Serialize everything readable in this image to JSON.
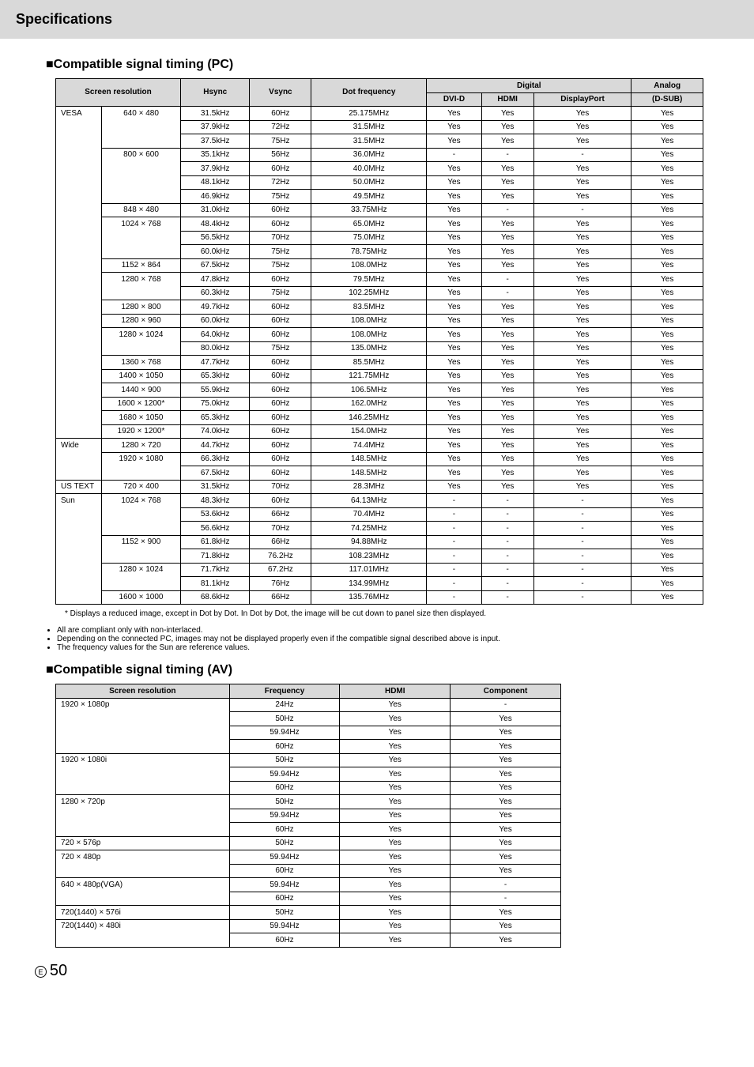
{
  "page_header": "Specifications",
  "section_pc_title": "■Compatible signal timing (PC)",
  "section_av_title": "■Compatible signal timing (AV)",
  "footnote_pc": "* Displays a reduced image, except in Dot by Dot. In Dot by Dot, the image will be cut down to panel size then displayed.",
  "notes": [
    "All are compliant only with non-interlaced.",
    "Depending on the connected PC, images may not be displayed properly even if the compatible signal described above is input.",
    "The frequency values for the Sun are reference values."
  ],
  "page_symbol": "E",
  "page_number": "50",
  "pc_header": {
    "screen_res": "Screen resolution",
    "hsync": "Hsync",
    "vsync": "Vsync",
    "dotfreq": "Dot frequency",
    "digital": "Digital",
    "dvid": "DVI-D",
    "hdmi": "HDMI",
    "dp": "DisplayPort",
    "analog": "Analog",
    "dsub": "(D-SUB)"
  },
  "pc_rows": [
    {
      "g": "VESA",
      "r": "640 × 480",
      "h": "31.5kHz",
      "v": "60Hz",
      "d": "25.175MHz",
      "dv": "Yes",
      "hd": "Yes",
      "dp": "Yes",
      "an": "Yes"
    },
    {
      "g": "",
      "r": "",
      "h": "37.9kHz",
      "v": "72Hz",
      "d": "31.5MHz",
      "dv": "Yes",
      "hd": "Yes",
      "dp": "Yes",
      "an": "Yes"
    },
    {
      "g": "",
      "r": "",
      "h": "37.5kHz",
      "v": "75Hz",
      "d": "31.5MHz",
      "dv": "Yes",
      "hd": "Yes",
      "dp": "Yes",
      "an": "Yes"
    },
    {
      "g": "",
      "r": "800 × 600",
      "h": "35.1kHz",
      "v": "56Hz",
      "d": "36.0MHz",
      "dv": "-",
      "hd": "-",
      "dp": "-",
      "an": "Yes"
    },
    {
      "g": "",
      "r": "",
      "h": "37.9kHz",
      "v": "60Hz",
      "d": "40.0MHz",
      "dv": "Yes",
      "hd": "Yes",
      "dp": "Yes",
      "an": "Yes"
    },
    {
      "g": "",
      "r": "",
      "h": "48.1kHz",
      "v": "72Hz",
      "d": "50.0MHz",
      "dv": "Yes",
      "hd": "Yes",
      "dp": "Yes",
      "an": "Yes"
    },
    {
      "g": "",
      "r": "",
      "h": "46.9kHz",
      "v": "75Hz",
      "d": "49.5MHz",
      "dv": "Yes",
      "hd": "Yes",
      "dp": "Yes",
      "an": "Yes"
    },
    {
      "g": "",
      "r": "848 × 480",
      "h": "31.0kHz",
      "v": "60Hz",
      "d": "33.75MHz",
      "dv": "Yes",
      "hd": "-",
      "dp": "-",
      "an": "Yes"
    },
    {
      "g": "",
      "r": "1024 × 768",
      "h": "48.4kHz",
      "v": "60Hz",
      "d": "65.0MHz",
      "dv": "Yes",
      "hd": "Yes",
      "dp": "Yes",
      "an": "Yes"
    },
    {
      "g": "",
      "r": "",
      "h": "56.5kHz",
      "v": "70Hz",
      "d": "75.0MHz",
      "dv": "Yes",
      "hd": "Yes",
      "dp": "Yes",
      "an": "Yes"
    },
    {
      "g": "",
      "r": "",
      "h": "60.0kHz",
      "v": "75Hz",
      "d": "78.75MHz",
      "dv": "Yes",
      "hd": "Yes",
      "dp": "Yes",
      "an": "Yes"
    },
    {
      "g": "",
      "r": "1152 × 864",
      "h": "67.5kHz",
      "v": "75Hz",
      "d": "108.0MHz",
      "dv": "Yes",
      "hd": "Yes",
      "dp": "Yes",
      "an": "Yes"
    },
    {
      "g": "",
      "r": "1280 × 768",
      "h": "47.8kHz",
      "v": "60Hz",
      "d": "79.5MHz",
      "dv": "Yes",
      "hd": "-",
      "dp": "Yes",
      "an": "Yes"
    },
    {
      "g": "",
      "r": "",
      "h": "60.3kHz",
      "v": "75Hz",
      "d": "102.25MHz",
      "dv": "Yes",
      "hd": "-",
      "dp": "Yes",
      "an": "Yes"
    },
    {
      "g": "",
      "r": "1280 × 800",
      "h": "49.7kHz",
      "v": "60Hz",
      "d": "83.5MHz",
      "dv": "Yes",
      "hd": "Yes",
      "dp": "Yes",
      "an": "Yes"
    },
    {
      "g": "",
      "r": "1280 × 960",
      "h": "60.0kHz",
      "v": "60Hz",
      "d": "108.0MHz",
      "dv": "Yes",
      "hd": "Yes",
      "dp": "Yes",
      "an": "Yes"
    },
    {
      "g": "",
      "r": "1280 × 1024",
      "h": "64.0kHz",
      "v": "60Hz",
      "d": "108.0MHz",
      "dv": "Yes",
      "hd": "Yes",
      "dp": "Yes",
      "an": "Yes"
    },
    {
      "g": "",
      "r": "",
      "h": "80.0kHz",
      "v": "75Hz",
      "d": "135.0MHz",
      "dv": "Yes",
      "hd": "Yes",
      "dp": "Yes",
      "an": "Yes"
    },
    {
      "g": "",
      "r": "1360 × 768",
      "h": "47.7kHz",
      "v": "60Hz",
      "d": "85.5MHz",
      "dv": "Yes",
      "hd": "Yes",
      "dp": "Yes",
      "an": "Yes"
    },
    {
      "g": "",
      "r": "1400 × 1050",
      "h": "65.3kHz",
      "v": "60Hz",
      "d": "121.75MHz",
      "dv": "Yes",
      "hd": "Yes",
      "dp": "Yes",
      "an": "Yes"
    },
    {
      "g": "",
      "r": "1440 × 900",
      "h": "55.9kHz",
      "v": "60Hz",
      "d": "106.5MHz",
      "dv": "Yes",
      "hd": "Yes",
      "dp": "Yes",
      "an": "Yes"
    },
    {
      "g": "",
      "r": "1600 × 1200*",
      "h": "75.0kHz",
      "v": "60Hz",
      "d": "162.0MHz",
      "dv": "Yes",
      "hd": "Yes",
      "dp": "Yes",
      "an": "Yes"
    },
    {
      "g": "",
      "r": "1680 × 1050",
      "h": "65.3kHz",
      "v": "60Hz",
      "d": "146.25MHz",
      "dv": "Yes",
      "hd": "Yes",
      "dp": "Yes",
      "an": "Yes"
    },
    {
      "g": "",
      "r": "1920 × 1200*",
      "h": "74.0kHz",
      "v": "60Hz",
      "d": "154.0MHz",
      "dv": "Yes",
      "hd": "Yes",
      "dp": "Yes",
      "an": "Yes"
    },
    {
      "g": "Wide",
      "r": "1280 × 720",
      "h": "44.7kHz",
      "v": "60Hz",
      "d": "74.4MHz",
      "dv": "Yes",
      "hd": "Yes",
      "dp": "Yes",
      "an": "Yes"
    },
    {
      "g": "",
      "r": "1920 × 1080",
      "h": "66.3kHz",
      "v": "60Hz",
      "d": "148.5MHz",
      "dv": "Yes",
      "hd": "Yes",
      "dp": "Yes",
      "an": "Yes"
    },
    {
      "g": "",
      "r": "",
      "h": "67.5kHz",
      "v": "60Hz",
      "d": "148.5MHz",
      "dv": "Yes",
      "hd": "Yes",
      "dp": "Yes",
      "an": "Yes"
    },
    {
      "g": "US TEXT",
      "r": "720 × 400",
      "h": "31.5kHz",
      "v": "70Hz",
      "d": "28.3MHz",
      "dv": "Yes",
      "hd": "Yes",
      "dp": "Yes",
      "an": "Yes"
    },
    {
      "g": "Sun",
      "r": "1024 × 768",
      "h": "48.3kHz",
      "v": "60Hz",
      "d": "64.13MHz",
      "dv": "-",
      "hd": "-",
      "dp": "-",
      "an": "Yes"
    },
    {
      "g": "",
      "r": "",
      "h": "53.6kHz",
      "v": "66Hz",
      "d": "70.4MHz",
      "dv": "-",
      "hd": "-",
      "dp": "-",
      "an": "Yes"
    },
    {
      "g": "",
      "r": "",
      "h": "56.6kHz",
      "v": "70Hz",
      "d": "74.25MHz",
      "dv": "-",
      "hd": "-",
      "dp": "-",
      "an": "Yes"
    },
    {
      "g": "",
      "r": "1152 × 900",
      "h": "61.8kHz",
      "v": "66Hz",
      "d": "94.88MHz",
      "dv": "-",
      "hd": "-",
      "dp": "-",
      "an": "Yes"
    },
    {
      "g": "",
      "r": "",
      "h": "71.8kHz",
      "v": "76.2Hz",
      "d": "108.23MHz",
      "dv": "-",
      "hd": "-",
      "dp": "-",
      "an": "Yes"
    },
    {
      "g": "",
      "r": "1280 × 1024",
      "h": "71.7kHz",
      "v": "67.2Hz",
      "d": "117.01MHz",
      "dv": "-",
      "hd": "-",
      "dp": "-",
      "an": "Yes"
    },
    {
      "g": "",
      "r": "",
      "h": "81.1kHz",
      "v": "76Hz",
      "d": "134.99MHz",
      "dv": "-",
      "hd": "-",
      "dp": "-",
      "an": "Yes"
    },
    {
      "g": "",
      "r": "1600 × 1000",
      "h": "68.6kHz",
      "v": "66Hz",
      "d": "135.76MHz",
      "dv": "-",
      "hd": "-",
      "dp": "-",
      "an": "Yes"
    }
  ],
  "pc_groups": [
    {
      "start": 0,
      "span": 24
    },
    {
      "start": 24,
      "span": 3
    },
    {
      "start": 27,
      "span": 1
    },
    {
      "start": 28,
      "span": 8
    }
  ],
  "pc_res_spans": {
    "0": 3,
    "3": 4,
    "7": 1,
    "8": 3,
    "11": 1,
    "12": 2,
    "14": 1,
    "15": 1,
    "16": 2,
    "18": 1,
    "19": 1,
    "20": 1,
    "21": 1,
    "22": 1,
    "23": 1,
    "24": 1,
    "25": 2,
    "27": 1,
    "28": 3,
    "31": 2,
    "33": 2,
    "35": 1
  },
  "av_header": {
    "screen_res": "Screen resolution",
    "freq": "Frequency",
    "hdmi": "HDMI",
    "comp": "Component"
  },
  "av_rows": [
    {
      "r": "1920 × 1080p",
      "f": "24Hz",
      "h": "Yes",
      "c": "-"
    },
    {
      "r": "",
      "f": "50Hz",
      "h": "Yes",
      "c": "Yes"
    },
    {
      "r": "",
      "f": "59.94Hz",
      "h": "Yes",
      "c": "Yes"
    },
    {
      "r": "",
      "f": "60Hz",
      "h": "Yes",
      "c": "Yes"
    },
    {
      "r": "1920 × 1080i",
      "f": "50Hz",
      "h": "Yes",
      "c": "Yes"
    },
    {
      "r": "",
      "f": "59.94Hz",
      "h": "Yes",
      "c": "Yes"
    },
    {
      "r": "",
      "f": "60Hz",
      "h": "Yes",
      "c": "Yes"
    },
    {
      "r": "1280 × 720p",
      "f": "50Hz",
      "h": "Yes",
      "c": "Yes"
    },
    {
      "r": "",
      "f": "59.94Hz",
      "h": "Yes",
      "c": "Yes"
    },
    {
      "r": "",
      "f": "60Hz",
      "h": "Yes",
      "c": "Yes"
    },
    {
      "r": "720 × 576p",
      "f": "50Hz",
      "h": "Yes",
      "c": "Yes"
    },
    {
      "r": "720 × 480p",
      "f": "59.94Hz",
      "h": "Yes",
      "c": "Yes"
    },
    {
      "r": "",
      "f": "60Hz",
      "h": "Yes",
      "c": "Yes"
    },
    {
      "r": "640 × 480p(VGA)",
      "f": "59.94Hz",
      "h": "Yes",
      "c": "-"
    },
    {
      "r": "",
      "f": "60Hz",
      "h": "Yes",
      "c": "-"
    },
    {
      "r": "720(1440) × 576i",
      "f": "50Hz",
      "h": "Yes",
      "c": "Yes"
    },
    {
      "r": "720(1440) × 480i",
      "f": "59.94Hz",
      "h": "Yes",
      "c": "Yes"
    },
    {
      "r": "",
      "f": "60Hz",
      "h": "Yes",
      "c": "Yes"
    }
  ],
  "av_res_spans": {
    "0": 4,
    "4": 3,
    "7": 3,
    "10": 1,
    "11": 2,
    "13": 2,
    "15": 1,
    "16": 2
  },
  "colors": {
    "header_bg": "#d9d9d9",
    "border": "#000000",
    "text": "#000000",
    "page_bg": "#ffffff"
  }
}
